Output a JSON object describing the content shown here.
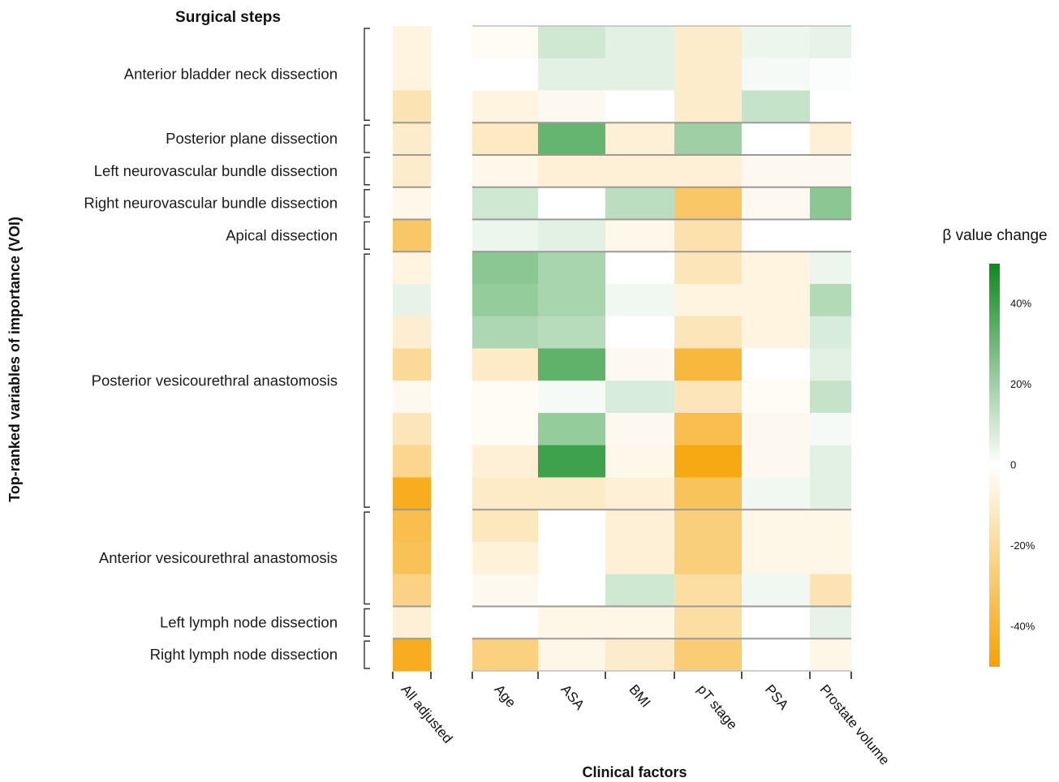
{
  "chart_data": {
    "type": "heatmap",
    "title": "",
    "header": "Surgical steps",
    "ylabel": "Top-ranked variables of importance (VOI)",
    "xlabel": "Clinical factors",
    "columns": [
      "All adjusted",
      "Age",
      "ASA",
      "BMI",
      "pT stage",
      "PSA",
      "Prostate volume"
    ],
    "groups": [
      {
        "label": "Anterior bladder neck dissection",
        "rows": 3
      },
      {
        "label": "Posterior plane dissection",
        "rows": 1
      },
      {
        "label": "Left neurovascular bundle dissection",
        "rows": 1
      },
      {
        "label": "Right neurovascular bundle dissection",
        "rows": 1
      },
      {
        "label": "Apical dissection",
        "rows": 1
      },
      {
        "label": "Posterior vesicourethral anastomosis",
        "rows": 8
      },
      {
        "label": "Anterior vesicourethral anastomosis",
        "rows": 3
      },
      {
        "label": "Left lymph node dissection",
        "rows": 1
      },
      {
        "label": "Right lymph node dissection",
        "rows": 1
      }
    ],
    "values_unit": "% change in beta value",
    "values": [
      [
        -6,
        -2,
        10,
        6,
        -10,
        4,
        5
      ],
      [
        -6,
        0,
        6,
        6,
        -10,
        2,
        1
      ],
      [
        -15,
        -6,
        -3,
        0,
        -10,
        12,
        0
      ],
      [
        -10,
        -12,
        32,
        -8,
        20,
        0,
        -8
      ],
      [
        -10,
        -4,
        -8,
        -8,
        -8,
        -3,
        -3
      ],
      [
        -4,
        10,
        0,
        14,
        -30,
        -3,
        24
      ],
      [
        -30,
        4,
        6,
        -4,
        -16,
        0,
        0
      ],
      [
        -6,
        24,
        18,
        0,
        -14,
        -6,
        4
      ],
      [
        5,
        22,
        18,
        3,
        -6,
        -6,
        16
      ],
      [
        -9,
        17,
        15,
        0,
        -14,
        -6,
        8
      ],
      [
        -20,
        -11,
        33,
        -3,
        -38,
        0,
        6
      ],
      [
        -3,
        -2,
        2,
        8,
        -14,
        -2,
        12
      ],
      [
        -14,
        -2,
        22,
        -3,
        -35,
        -3,
        2
      ],
      [
        -22,
        -8,
        40,
        -4,
        -46,
        -3,
        6
      ],
      [
        -44,
        -11,
        -11,
        -8,
        -32,
        3,
        6
      ],
      [
        -35,
        -13,
        0,
        -8,
        -26,
        -5,
        -5
      ],
      [
        -33,
        -7,
        0,
        -8,
        -26,
        -5,
        -5
      ],
      [
        -24,
        -3,
        0,
        10,
        -18,
        3,
        -15
      ],
      [
        -8,
        0,
        -5,
        -5,
        -18,
        0,
        5
      ],
      [
        -44,
        -25,
        -5,
        -10,
        -27,
        0,
        -5
      ]
    ],
    "legend": {
      "title": "β value change",
      "ticks": [
        "40%",
        "20%",
        "0",
        "-20%",
        "-40%"
      ],
      "range": [
        -50,
        50
      ],
      "low_color": "#f6a200",
      "mid_color": "#ffffff",
      "high_color": "#0e8a1e"
    }
  }
}
